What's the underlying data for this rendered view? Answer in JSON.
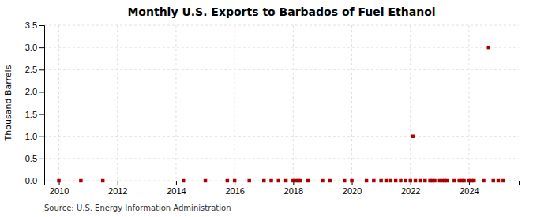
{
  "chart_data": {
    "type": "scatter",
    "title": "Monthly U.S. Exports to Barbados of Fuel Ethanol",
    "y_label": "Thousand Barrels",
    "annotations": [
      "Source: U.S. Energy Information Administration"
    ],
    "x": [
      2010.0,
      2010.75,
      2011.5,
      2014.25,
      2015.0,
      2015.75,
      2016.0,
      2016.5,
      2017.0,
      2017.25,
      2017.5,
      2017.75,
      2018.0,
      2018.08,
      2018.17,
      2018.25,
      2018.5,
      2019.0,
      2019.25,
      2019.75,
      2020.0,
      2020.5,
      2020.75,
      2021.0,
      2021.17,
      2021.33,
      2021.5,
      2021.67,
      2021.83,
      2022.0,
      2022.08,
      2022.17,
      2022.33,
      2022.5,
      2022.67,
      2022.75,
      2022.83,
      2023.0,
      2023.08,
      2023.17,
      2023.25,
      2023.5,
      2023.67,
      2023.75,
      2023.83,
      2024.0,
      2024.08,
      2024.17,
      2024.5,
      2024.67,
      2024.83,
      2025.0,
      2025.17
    ],
    "values": [
      0.0,
      0.0,
      0.0,
      0.0,
      0.0,
      0.0,
      0.0,
      0.0,
      0.0,
      0.0,
      0.0,
      0.0,
      0.0,
      0.0,
      0.0,
      0.0,
      0.0,
      0.0,
      0.0,
      0.0,
      0.0,
      0.0,
      0.0,
      0.0,
      0.0,
      0.0,
      0.0,
      0.0,
      0.0,
      0.0,
      1.0,
      0.0,
      0.0,
      0.0,
      0.0,
      0.0,
      0.0,
      0.0,
      0.0,
      0.0,
      0.0,
      0.0,
      0.0,
      0.0,
      0.0,
      0.0,
      0.0,
      0.0,
      0.0,
      3.0,
      0.0,
      0.0,
      0.0
    ],
    "color": "#aa0000",
    "marker": "square",
    "grid": true,
    "xlim": [
      2009.5,
      2025.7
    ],
    "ylim": [
      0.0,
      3.5
    ],
    "xticks": [
      2010,
      2012,
      2014,
      2016,
      2018,
      2020,
      2022,
      2024
    ],
    "yticks": [
      {
        "value": 0.0,
        "label": "0.0"
      },
      0.5,
      {
        "value": 1.0,
        "label": "1.0"
      },
      1.5,
      {
        "value": 2.0,
        "label": "2.0"
      },
      2.5,
      {
        "value": 3.0,
        "label": "3.0"
      },
      3.5
    ]
  }
}
